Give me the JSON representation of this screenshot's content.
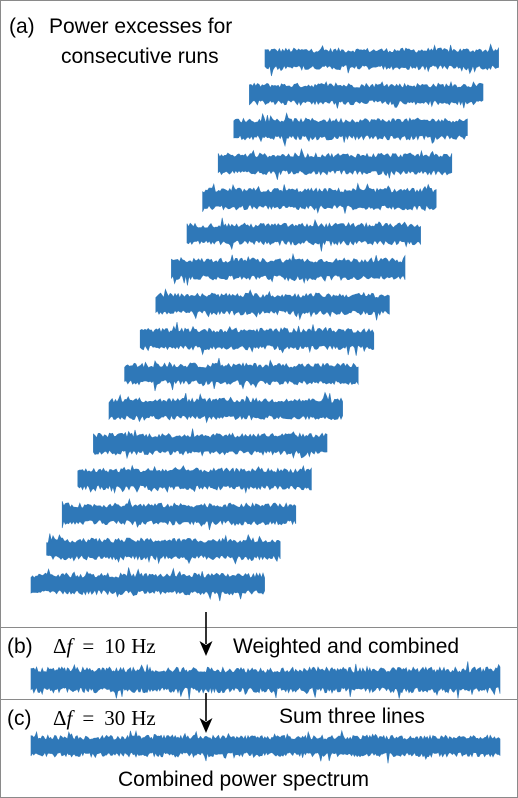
{
  "colors": {
    "trace": "#2f78b8",
    "frame": "#8a8a8a",
    "text": "#000000",
    "background": "#ffffff"
  },
  "panel_a": {
    "tag": "(a)",
    "title_line1": "Power excesses for",
    "title_line2": "consecutive runs",
    "run_count": 16
  },
  "panel_b": {
    "tag": "(b)",
    "delta_symbol": "Δ",
    "f_symbol": "f",
    "equals": "=",
    "resolution_value": "10",
    "resolution_unit": "Hz",
    "description": "Weighted and combined"
  },
  "panel_c": {
    "tag": "(c)",
    "delta_symbol": "Δ",
    "f_symbol": "f",
    "equals": "=",
    "resolution_value": "30",
    "resolution_unit": "Hz",
    "description": "Sum three lines",
    "caption": "Combined power spectrum"
  }
}
